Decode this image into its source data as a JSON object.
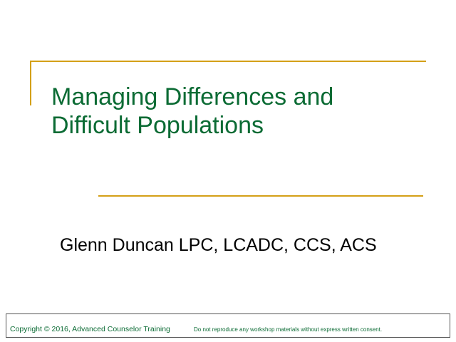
{
  "slide": {
    "title_lines": [
      "Managing Differences and",
      "Difficult Populations"
    ],
    "subtitle": "Glenn Duncan LPC, LCADC, CCS, ACS",
    "footer": {
      "copyright": "Copyright © 2016, Advanced Counselor Training",
      "notice": "Do not reproduce any workshop materials without express written consent."
    }
  }
}
